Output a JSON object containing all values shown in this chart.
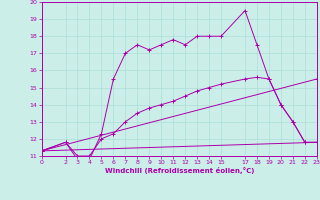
{
  "bg_color": "#cceee8",
  "grid_color": "#aaddd8",
  "line_color": "#aa00aa",
  "marker": "+",
  "xlabel": "Windchill (Refroidissement éolien,°C)",
  "xlim": [
    0,
    23
  ],
  "ylim": [
    11,
    20
  ],
  "xticks": [
    0,
    2,
    3,
    4,
    5,
    6,
    7,
    8,
    9,
    10,
    11,
    12,
    13,
    14,
    15,
    17,
    18,
    19,
    20,
    21,
    22,
    23
  ],
  "yticks": [
    11,
    12,
    13,
    14,
    15,
    16,
    17,
    18,
    19,
    20
  ],
  "series": [
    {
      "x": [
        0,
        2,
        3,
        4,
        5,
        6,
        7,
        8,
        9,
        10,
        11,
        12,
        13,
        14,
        15,
        17,
        18,
        19,
        20,
        21,
        22,
        23
      ],
      "y": [
        11.3,
        11.8,
        10.8,
        10.8,
        12.3,
        15.5,
        17.0,
        17.5,
        17.2,
        17.5,
        17.8,
        17.5,
        18.0,
        18.0,
        18.0,
        19.5,
        17.5,
        15.5,
        14.0,
        13.0,
        11.8,
        11.8
      ]
    },
    {
      "x": [
        0,
        2,
        3,
        4,
        5,
        6,
        7,
        8,
        9,
        10,
        11,
        12,
        13,
        14,
        15,
        17,
        18,
        19,
        20,
        21,
        22,
        23
      ],
      "y": [
        11.3,
        11.8,
        11.0,
        11.0,
        12.0,
        12.3,
        13.0,
        13.5,
        13.8,
        14.0,
        14.2,
        14.5,
        14.8,
        15.0,
        15.2,
        15.5,
        15.6,
        15.5,
        14.0,
        13.0,
        11.8,
        11.8
      ]
    },
    {
      "x": [
        0,
        23
      ],
      "y": [
        11.3,
        11.8
      ]
    },
    {
      "x": [
        0,
        23
      ],
      "y": [
        11.3,
        15.5
      ]
    }
  ]
}
